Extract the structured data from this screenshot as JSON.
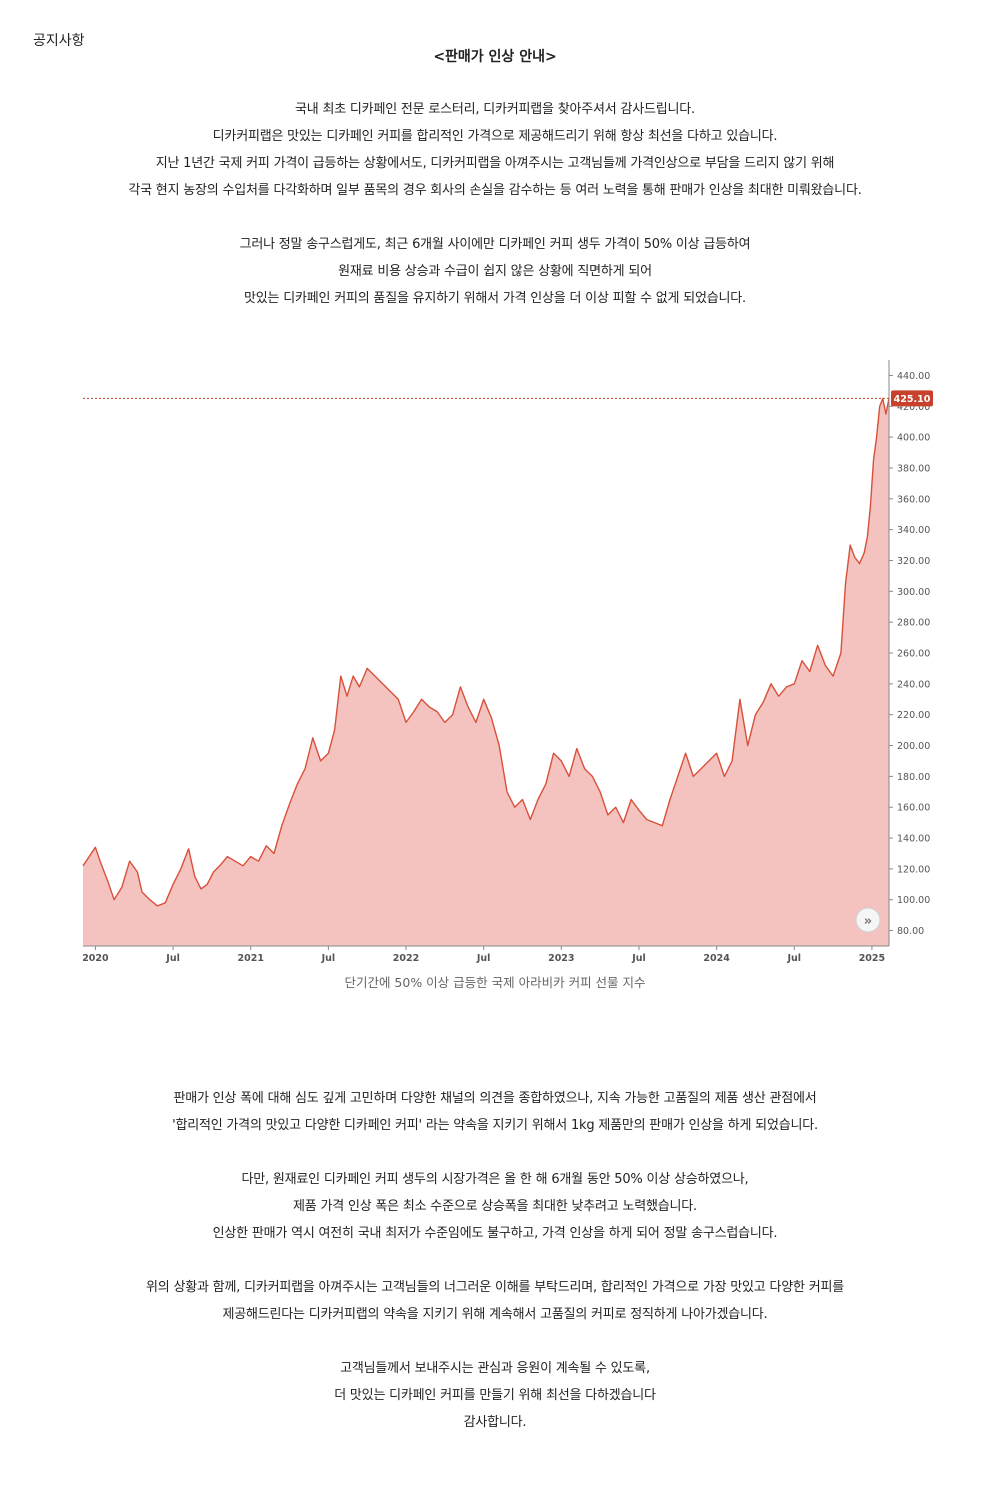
{
  "header": {
    "label": "공지사항"
  },
  "notice": {
    "title": "<판매가 인상 안내>"
  },
  "intro": [
    "국내 최초 디카페인 전문 로스터리, 디카커피랩을 찾아주셔서 감사드립니다.",
    "디카커피랩은 맛있는 디카페인 커피를 합리적인 가격으로 제공해드리기 위해 항상 최선을 다하고 있습니다.",
    "지난 1년간 국제 커피 가격이 급등하는 상황에서도, 디카커피랩을 아껴주시는 고객님들께 가격인상으로 부담을 드리지 않기 위해",
    "각국 현지 농장의 수입처를 다각화하며 일부 품목의 경우 회사의 손실을 감수하는 등 여러 노력을 통해 판매가 인상을 최대한 미뤄왔습니다."
  ],
  "reason": [
    "그러나 정말 송구스럽게도, 최근 6개월 사이에만 디카페인 커피 생두 가격이 50% 이상 급등하여",
    "원재료 비용 상승과 수급이 쉽지 않은 상황에 직면하게 되어",
    "맛있는 디카페인 커피의 품질을 유지하기 위해서 가격 인상을 더 이상 피할 수 없게 되었습니다."
  ],
  "chart_caption": "단기간에 50% 이상 급등한 국제 아라비카 커피 선물 지수",
  "chart_data": {
    "type": "area",
    "current_value_label": "425.10",
    "current_value": 425.1,
    "ylim": [
      70,
      450
    ],
    "y_ticks": [
      "440.00",
      "420.00",
      "400.00",
      "380.00",
      "360.00",
      "340.00",
      "320.00",
      "300.00",
      "280.00",
      "260.00",
      "240.00",
      "220.00",
      "200.00",
      "180.00",
      "160.00",
      "140.00",
      "120.00",
      "100.00",
      "80.00"
    ],
    "x_ticks": [
      "2020",
      "Jul",
      "2021",
      "Jul",
      "2022",
      "Jul",
      "2023",
      "Jul",
      "2024",
      "Jul",
      "2025"
    ],
    "x_tick_pos": [
      0,
      0.5,
      1,
      1.5,
      2,
      2.5,
      3,
      3.5,
      4,
      4.5,
      5
    ],
    "xlim": [
      -0.08,
      5.11
    ],
    "series": [
      {
        "x": [
          -0.08,
          0.0,
          0.03,
          0.08,
          0.12,
          0.17,
          0.22,
          0.27,
          0.3,
          0.35,
          0.4,
          0.45,
          0.5,
          0.55,
          0.6,
          0.64,
          0.68,
          0.72,
          0.76,
          0.8,
          0.85,
          0.9,
          0.95,
          1.0,
          1.05,
          1.1,
          1.15,
          1.2,
          1.25,
          1.3,
          1.35,
          1.4,
          1.45,
          1.5,
          1.54,
          1.58,
          1.62,
          1.66,
          1.7,
          1.75,
          1.8,
          1.85,
          1.9,
          1.95,
          2.0,
          2.05,
          2.1,
          2.15,
          2.2,
          2.25,
          2.3,
          2.35,
          2.4,
          2.45,
          2.5,
          2.55,
          2.6,
          2.65,
          2.7,
          2.75,
          2.8,
          2.85,
          2.9,
          2.95,
          3.0,
          3.05,
          3.1,
          3.15,
          3.2,
          3.25,
          3.3,
          3.35,
          3.4,
          3.45,
          3.5,
          3.55,
          3.6,
          3.65,
          3.7,
          3.75,
          3.8,
          3.85,
          3.9,
          3.95,
          4.0,
          4.05,
          4.1,
          4.15,
          4.2,
          4.25,
          4.3,
          4.35,
          4.4,
          4.45,
          4.5,
          4.55,
          4.6,
          4.65,
          4.7,
          4.75,
          4.8,
          4.83,
          4.86,
          4.89,
          4.92,
          4.95,
          4.97,
          4.99,
          5.01,
          5.03,
          5.05,
          5.07,
          5.09,
          5.11
        ],
        "values": [
          122,
          134,
          125,
          112,
          100,
          108,
          125,
          118,
          105,
          100,
          96,
          98,
          110,
          120,
          133,
          115,
          107,
          110,
          118,
          122,
          128,
          125,
          122,
          128,
          125,
          135,
          130,
          148,
          162,
          175,
          185,
          205,
          190,
          195,
          210,
          245,
          232,
          245,
          238,
          250,
          245,
          240,
          235,
          230,
          215,
          222,
          230,
          225,
          222,
          215,
          220,
          238,
          225,
          215,
          230,
          218,
          200,
          170,
          160,
          165,
          152,
          165,
          175,
          195,
          190,
          180,
          198,
          185,
          180,
          170,
          155,
          160,
          150,
          165,
          158,
          152,
          150,
          148,
          165,
          180,
          195,
          180,
          185,
          190,
          195,
          180,
          190,
          230,
          200,
          220,
          228,
          240,
          232,
          238,
          240,
          255,
          248,
          265,
          252,
          245,
          260,
          305,
          330,
          322,
          318,
          325,
          335,
          355,
          385,
          400,
          420,
          425,
          415,
          425.1
        ]
      }
    ]
  },
  "decision": [
    "판매가 인상 폭에 대해 심도 깊게 고민하며 다양한 채널의 의견을 종합하였으나, 지속 가능한 고품질의 제품 생산 관점에서",
    "'합리적인 가격의 맛있고 다양한 디카페인 커피' 라는 약속을 지키기 위해서 1kg 제품만의 판매가 인상을 하게 되었습니다."
  ],
  "minimum": [
    "다만, 원재료인 디카페인 커피 생두의 시장가격은 올 한 해 6개월 동안 50% 이상 상승하였으나,",
    "제품 가격 인상 폭은 최소 수준으로 상승폭을 최대한 낮추려고 노력했습니다.",
    "인상한 판매가 역시 여전히 국내 최저가 수준임에도 불구하고, 가격 인상을 하게 되어 정말 송구스럽습니다."
  ],
  "request": [
    "위의 상황과 함께, 디카커피랩을 아껴주시는 고객님들의 너그러운 이해를 부탁드리며, 합리적인 가격으로 가장 맛있고 다양한 커피를",
    "제공해드린다는 디카커피랩의 약속을 지키기 위해 계속해서 고품질의 커피로 정직하게 나아가겠습니다."
  ],
  "closing": [
    "고객님들께서 보내주시는 관심과 응원이 계속될 수 있도록,",
    "더 맛있는 디카페인 커피를 만들기 위해 최선을 다하겠습니다",
    "감사합니다."
  ],
  "colors": {
    "line": "#d9503a",
    "fill": "#f4c3c0",
    "price_tag": "#c8412c",
    "axis_text": "#555555"
  },
  "icons": {
    "expand": "double-chevron-right-icon"
  }
}
